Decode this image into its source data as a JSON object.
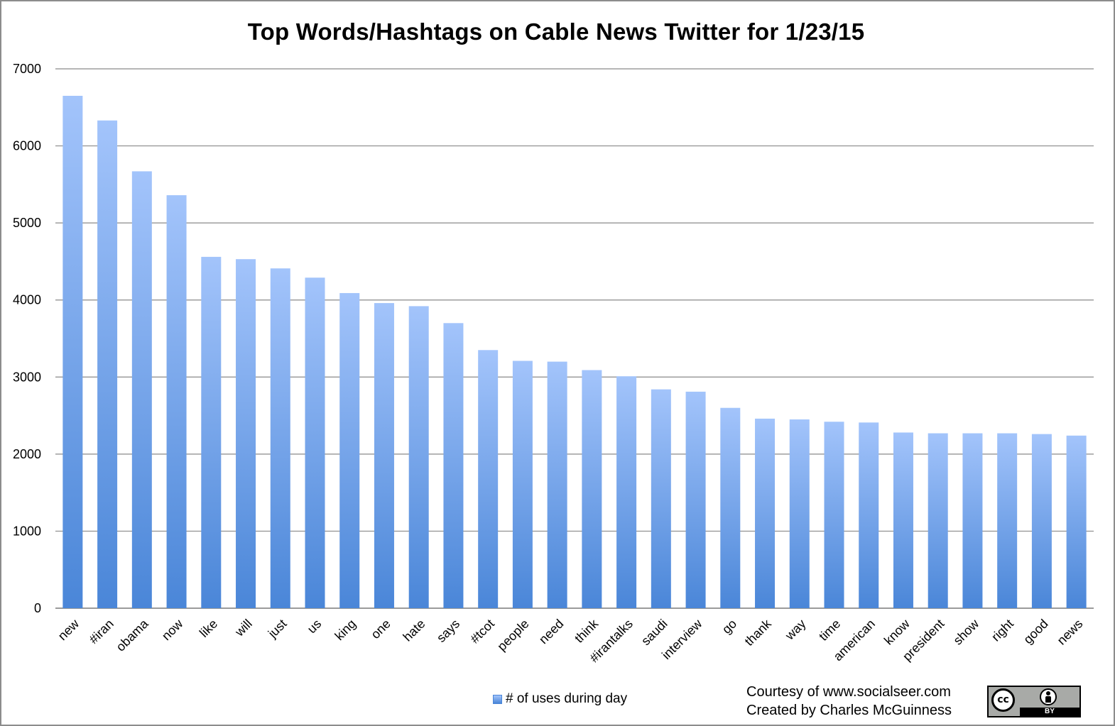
{
  "chart_data": {
    "type": "bar",
    "title": "Top Words/Hashtags on Cable News Twitter for 1/23/15",
    "xlabel": "",
    "ylabel": "",
    "ylim": [
      0,
      7000
    ],
    "yticks": [
      0,
      1000,
      2000,
      3000,
      4000,
      5000,
      6000,
      7000
    ],
    "grid": true,
    "legend_position": "bottom",
    "categories": [
      "new",
      "#iran",
      "obama",
      "now",
      "like",
      "will",
      "just",
      "us",
      "king",
      "one",
      "hate",
      "says",
      "#tcot",
      "people",
      "need",
      "think",
      "#irantalks",
      "saudi",
      "interview",
      "go",
      "thank",
      "way",
      "time",
      "american",
      "know",
      "president",
      "show",
      "right",
      "good",
      "news"
    ],
    "series": [
      {
        "name": "# of uses during day",
        "values": [
          6650,
          6330,
          5670,
          5360,
          4560,
          4530,
          4410,
          4290,
          4090,
          3960,
          3920,
          3700,
          3350,
          3210,
          3200,
          3090,
          3010,
          2840,
          2810,
          2600,
          2460,
          2450,
          2420,
          2410,
          2280,
          2270,
          2270,
          2270,
          2260,
          2240
        ]
      }
    ],
    "colors": {
      "bar_top": "#a3c4fb",
      "bar_bottom": "#4a86d8",
      "grid": "#8a8a8a"
    }
  },
  "credits": {
    "line1": "Courtesy of www.socialseer.com",
    "line2": "Created by Charles McGuinness"
  },
  "license_badge": {
    "icon": "cc-by-icon",
    "cc_text": "cc",
    "by_text": "BY"
  }
}
